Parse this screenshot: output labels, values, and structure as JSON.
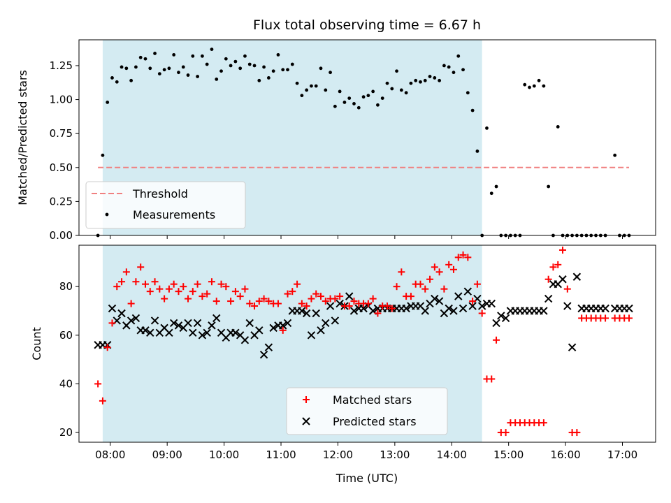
{
  "chart_data": [
    {
      "type": "scatter",
      "title": "Flux total observing time = 6.67 h",
      "xlabel": "",
      "ylabel": "Matched/Predicted stars",
      "ylim": [
        0,
        1.44
      ],
      "yticks": [
        "0.00",
        "0.25",
        "0.50",
        "0.75",
        "1.00",
        "1.25"
      ],
      "ytick_values": [
        0,
        0.25,
        0.5,
        0.75,
        1.0,
        1.25
      ],
      "xlim": [
        "07:27",
        "17:35"
      ],
      "xticks": [
        "08:00",
        "09:00",
        "10:00",
        "11:00",
        "12:00",
        "13:00",
        "14:00",
        "15:00",
        "16:00",
        "17:00"
      ],
      "shaded_range": [
        "07:52",
        "14:32"
      ],
      "threshold": {
        "name": "Threshold",
        "value": 0.5,
        "x_range": [
          "07:47",
          "17:07"
        ],
        "color": "#f08080"
      },
      "legend": {
        "position": "lower-left",
        "entries": [
          "Threshold",
          "Measurements"
        ]
      },
      "series": [
        {
          "name": "Measurements",
          "color": "#000000",
          "x": [
            "07:47",
            "07:52",
            "07:57",
            "08:02",
            "08:07",
            "08:12",
            "08:17",
            "08:22",
            "08:27",
            "08:32",
            "08:37",
            "08:42",
            "08:47",
            "08:52",
            "08:57",
            "09:02",
            "09:07",
            "09:12",
            "09:17",
            "09:22",
            "09:27",
            "09:32",
            "09:37",
            "09:42",
            "09:47",
            "09:52",
            "09:57",
            "10:02",
            "10:07",
            "10:12",
            "10:17",
            "10:22",
            "10:27",
            "10:32",
            "10:37",
            "10:42",
            "10:47",
            "10:52",
            "10:57",
            "11:02",
            "11:07",
            "11:12",
            "11:17",
            "11:22",
            "11:27",
            "11:32",
            "11:37",
            "11:42",
            "11:47",
            "11:52",
            "11:57",
            "12:02",
            "12:07",
            "12:12",
            "12:17",
            "12:22",
            "12:27",
            "12:32",
            "12:37",
            "12:42",
            "12:47",
            "12:52",
            "12:57",
            "13:02",
            "13:07",
            "13:12",
            "13:17",
            "13:22",
            "13:27",
            "13:32",
            "13:37",
            "13:42",
            "13:47",
            "13:52",
            "13:57",
            "14:02",
            "14:07",
            "14:12",
            "14:17",
            "14:22",
            "14:27",
            "14:32",
            "14:37",
            "14:42",
            "14:47",
            "14:52",
            "14:57",
            "15:02",
            "15:07",
            "15:12",
            "15:17",
            "15:22",
            "15:27",
            "15:32",
            "15:37",
            "15:42",
            "15:47",
            "15:52",
            "15:57",
            "16:02",
            "16:07",
            "16:12",
            "16:17",
            "16:22",
            "16:27",
            "16:32",
            "16:37",
            "16:42",
            "16:52",
            "16:57",
            "17:02",
            "17:07"
          ],
          "y": [
            0.0,
            0.59,
            0.98,
            1.16,
            1.13,
            1.24,
            1.23,
            1.14,
            1.24,
            1.31,
            1.3,
            1.23,
            1.34,
            1.19,
            1.22,
            1.23,
            1.33,
            1.2,
            1.24,
            1.18,
            1.32,
            1.17,
            1.32,
            1.26,
            1.37,
            1.15,
            1.21,
            1.3,
            1.25,
            1.28,
            1.23,
            1.32,
            1.26,
            1.25,
            1.14,
            1.24,
            1.16,
            1.21,
            1.33,
            1.22,
            1.22,
            1.26,
            1.12,
            1.03,
            1.07,
            1.1,
            1.1,
            1.23,
            1.07,
            1.2,
            0.95,
            1.06,
            0.98,
            1.01,
            0.97,
            0.94,
            1.02,
            1.03,
            1.06,
            0.96,
            1.01,
            1.12,
            1.08,
            1.21,
            1.07,
            1.05,
            1.12,
            1.14,
            1.13,
            1.14,
            1.17,
            1.16,
            1.14,
            1.25,
            1.24,
            1.2,
            1.32,
            1.22,
            1.05,
            0.92,
            0.62,
            0.0,
            0.79,
            0.31,
            0.36,
            0.0,
            0.0,
            0.0,
            0.0,
            0.0,
            1.11,
            1.09,
            1.1,
            1.14,
            1.1,
            0.36,
            0.0,
            0.8,
            0.0,
            0.0,
            0.0,
            0.0,
            0.0,
            0.0,
            0.0,
            0.0,
            0.0,
            0.0,
            0.59,
            0.0,
            0.0,
            0.0
          ]
        }
      ]
    },
    {
      "type": "scatter",
      "title": "",
      "xlabel": "Time (UTC)",
      "ylabel": "Count",
      "ylim": [
        16,
        97
      ],
      "yticks": [
        "20",
        "40",
        "60",
        "80"
      ],
      "ytick_values": [
        20,
        40,
        60,
        80
      ],
      "xlim": [
        "07:27",
        "17:35"
      ],
      "xticks": [
        "08:00",
        "09:00",
        "10:00",
        "11:00",
        "12:00",
        "13:00",
        "14:00",
        "15:00",
        "16:00",
        "17:00"
      ],
      "shaded_range": [
        "07:52",
        "14:32"
      ],
      "legend": {
        "position": "lower-center",
        "entries": [
          "Matched stars",
          "Predicted stars"
        ]
      },
      "series": [
        {
          "name": "Matched stars",
          "marker": "+",
          "color": "#ff0000",
          "x": [
            "07:47",
            "07:52",
            "07:57",
            "08:02",
            "08:07",
            "08:12",
            "08:17",
            "08:22",
            "08:27",
            "08:32",
            "08:37",
            "08:42",
            "08:47",
            "08:52",
            "08:57",
            "09:02",
            "09:07",
            "09:12",
            "09:17",
            "09:22",
            "09:27",
            "09:32",
            "09:37",
            "09:42",
            "09:47",
            "09:52",
            "09:57",
            "10:02",
            "10:07",
            "10:12",
            "10:17",
            "10:22",
            "10:27",
            "10:32",
            "10:37",
            "10:42",
            "10:47",
            "10:52",
            "10:57",
            "11:02",
            "11:07",
            "11:12",
            "11:17",
            "11:22",
            "11:27",
            "11:32",
            "11:37",
            "11:42",
            "11:47",
            "11:52",
            "11:57",
            "12:02",
            "12:07",
            "12:12",
            "12:17",
            "12:22",
            "12:27",
            "12:32",
            "12:37",
            "12:42",
            "12:47",
            "12:52",
            "12:57",
            "13:02",
            "13:07",
            "13:12",
            "13:17",
            "13:22",
            "13:27",
            "13:32",
            "13:37",
            "13:42",
            "13:47",
            "13:52",
            "13:57",
            "14:02",
            "14:07",
            "14:12",
            "14:17",
            "14:22",
            "14:27",
            "14:32",
            "14:37",
            "14:42",
            "14:47",
            "14:52",
            "14:57",
            "15:02",
            "15:07",
            "15:12",
            "15:17",
            "15:22",
            "15:27",
            "15:32",
            "15:37",
            "15:42",
            "15:47",
            "15:52",
            "15:57",
            "16:02",
            "16:07",
            "16:12",
            "16:17",
            "16:22",
            "16:27",
            "16:32",
            "16:37",
            "16:42",
            "16:52",
            "16:57",
            "17:02",
            "17:07"
          ],
          "y": [
            40,
            33,
            55,
            65,
            80,
            82,
            86,
            73,
            82,
            88,
            81,
            78,
            82,
            79,
            75,
            79,
            81,
            78,
            80,
            75,
            78,
            81,
            76,
            77,
            82,
            74,
            81,
            80,
            74,
            78,
            76,
            79,
            73,
            72,
            74,
            75,
            74,
            73,
            73,
            62,
            77,
            78,
            81,
            73,
            72,
            75,
            77,
            76,
            74,
            75,
            75,
            76,
            72,
            72,
            74,
            73,
            73,
            73,
            75,
            69,
            72,
            72,
            71,
            80,
            86,
            76,
            76,
            81,
            81,
            79,
            83,
            88,
            86,
            79,
            89,
            87,
            92,
            93,
            92,
            74,
            81,
            69,
            42,
            42,
            58,
            20,
            20,
            24,
            24,
            24,
            24,
            24,
            24,
            24,
            24,
            83,
            88,
            89,
            95,
            79,
            20,
            20,
            67,
            67,
            67,
            67,
            67,
            67,
            67,
            67,
            67,
            67
          ]
        },
        {
          "name": "Predicted stars",
          "marker": "x",
          "color": "#000000",
          "x": [
            "07:47",
            "07:52",
            "07:57",
            "08:02",
            "08:07",
            "08:12",
            "08:17",
            "08:22",
            "08:27",
            "08:32",
            "08:37",
            "08:42",
            "08:47",
            "08:52",
            "08:57",
            "09:02",
            "09:07",
            "09:12",
            "09:17",
            "09:22",
            "09:27",
            "09:32",
            "09:37",
            "09:42",
            "09:47",
            "09:52",
            "09:57",
            "10:02",
            "10:07",
            "10:12",
            "10:17",
            "10:22",
            "10:27",
            "10:32",
            "10:37",
            "10:42",
            "10:47",
            "10:52",
            "10:57",
            "11:02",
            "11:07",
            "11:12",
            "11:17",
            "11:22",
            "11:27",
            "11:32",
            "11:37",
            "11:42",
            "11:47",
            "11:52",
            "11:57",
            "12:02",
            "12:07",
            "12:12",
            "12:17",
            "12:22",
            "12:27",
            "12:32",
            "12:37",
            "12:42",
            "12:47",
            "12:52",
            "12:57",
            "13:02",
            "13:07",
            "13:12",
            "13:17",
            "13:22",
            "13:27",
            "13:32",
            "13:37",
            "13:42",
            "13:47",
            "13:52",
            "13:57",
            "14:02",
            "14:07",
            "14:12",
            "14:17",
            "14:22",
            "14:27",
            "14:32",
            "14:37",
            "14:42",
            "14:47",
            "14:52",
            "14:57",
            "15:02",
            "15:07",
            "15:12",
            "15:17",
            "15:22",
            "15:27",
            "15:32",
            "15:37",
            "15:42",
            "15:47",
            "15:52",
            "15:57",
            "16:02",
            "16:07",
            "16:12",
            "16:17",
            "16:22",
            "16:27",
            "16:32",
            "16:37",
            "16:42",
            "16:52",
            "16:57",
            "17:02",
            "17:07"
          ],
          "y": [
            56,
            56,
            56,
            71,
            66,
            69,
            64,
            66,
            67,
            62,
            62,
            61,
            66,
            61,
            63,
            61,
            65,
            64,
            63,
            65,
            61,
            65,
            60,
            61,
            64,
            67,
            61,
            59,
            61,
            61,
            60,
            58,
            65,
            60,
            62,
            52,
            55,
            63,
            64,
            64,
            65,
            70,
            70,
            70,
            69,
            60,
            69,
            62,
            65,
            72,
            66,
            73,
            72,
            76,
            70,
            71,
            71,
            72,
            70,
            71,
            71,
            71,
            71,
            71,
            71,
            71,
            72,
            72,
            72,
            70,
            73,
            75,
            74,
            69,
            71,
            70,
            76,
            71,
            78,
            72,
            75,
            72,
            73,
            73,
            65,
            68,
            67,
            70,
            70,
            70,
            70,
            70,
            70,
            70,
            70,
            75,
            81,
            81,
            83,
            72,
            55,
            84,
            71,
            71,
            71,
            71,
            71,
            71,
            71,
            71,
            71,
            71
          ]
        }
      ]
    }
  ]
}
